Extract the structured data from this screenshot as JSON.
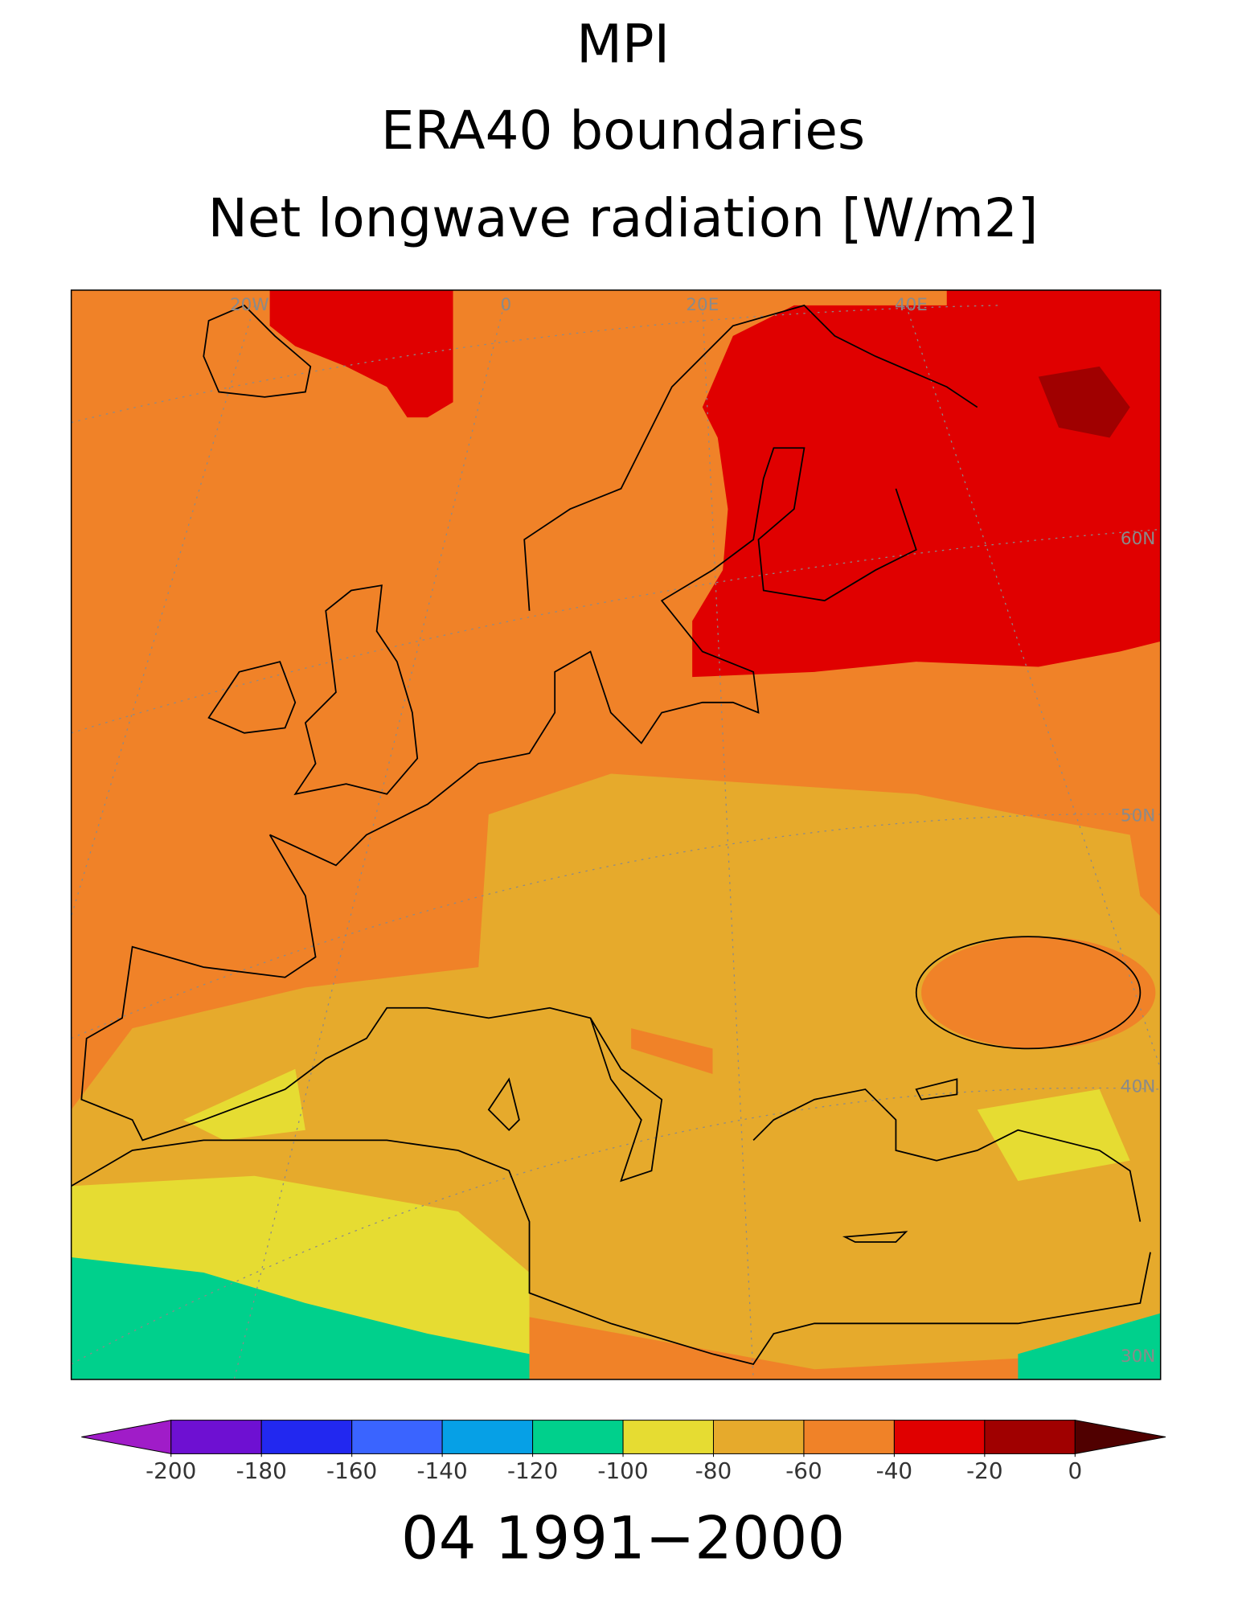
{
  "chart_data": {
    "type": "map",
    "title": [
      "MPI",
      "ERA40 boundaries",
      "Net longwave radiation [W/m2]"
    ],
    "lon_labels": [
      "20W",
      "0",
      "20E",
      "40E"
    ],
    "lat_labels": [
      "60N",
      "50N",
      "40N",
      "30N"
    ],
    "colorbar": {
      "ticks": [
        -200,
        -180,
        -160,
        -140,
        -120,
        -100,
        -80,
        -60,
        -40,
        -20,
        0
      ],
      "colors": [
        "#a01cc8",
        "#6e10d2",
        "#2228f0",
        "#3a64ff",
        "#06a0e6",
        "#00d08c",
        "#e6dc32",
        "#e6aa2c",
        "#f08228",
        "#e00000",
        "#a00000",
        "#500000"
      ]
    },
    "footer": "04 1991−2000"
  }
}
